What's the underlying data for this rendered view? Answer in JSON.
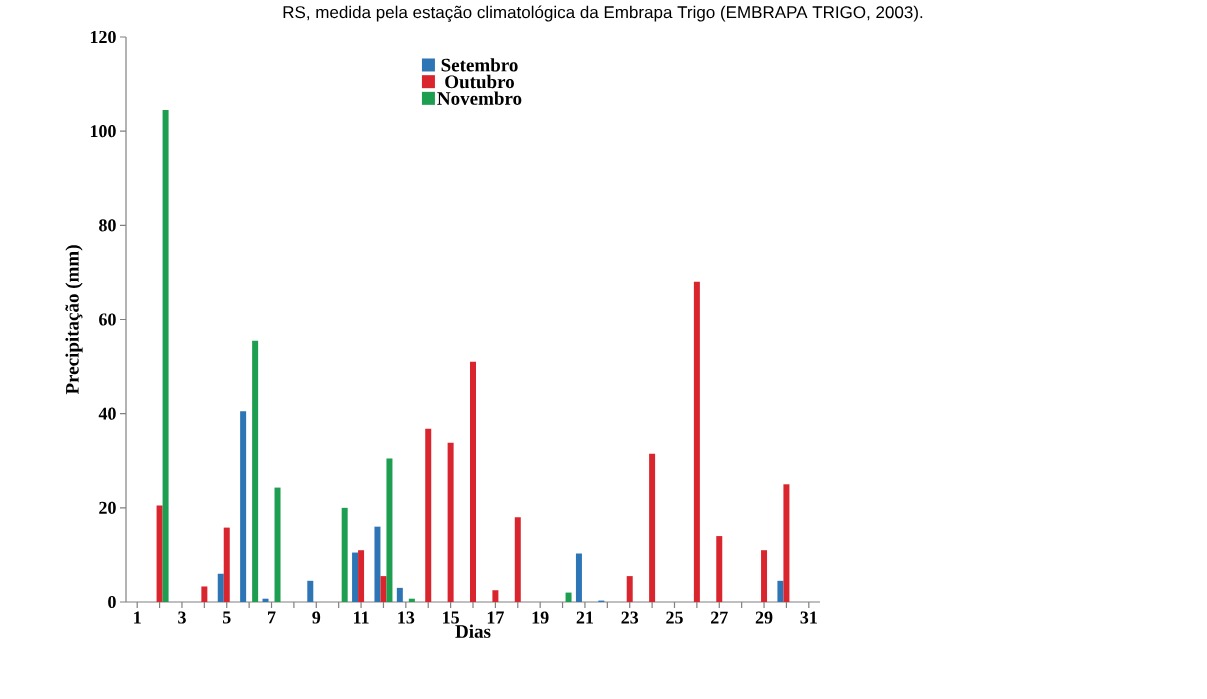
{
  "chart_data": {
    "type": "bar",
    "annotations": [
      "RS, medida pela estação climatológica da Embrapa Trigo (EMBRAPA TRIGO, 2003)."
    ],
    "xlabel": "Dias",
    "ylabel": "Precipitação (mm)",
    "categories": [
      "1",
      null,
      "3",
      null,
      "5",
      null,
      "7",
      null,
      "9",
      null,
      "11",
      null,
      "13",
      null,
      "15",
      null,
      "17",
      null,
      "19",
      null,
      "21",
      null,
      "23",
      null,
      "25",
      null,
      "27",
      null,
      "29",
      null,
      "31"
    ],
    "series": [
      {
        "name": "Setembro",
        "color": "#2e75b6",
        "values": [
          0,
          0,
          0,
          0,
          6,
          40.5,
          0.7,
          0,
          4.5,
          0,
          10.5,
          16,
          3,
          0,
          0,
          0,
          0,
          0,
          0,
          0,
          10.3,
          0.3,
          0,
          0,
          0,
          0,
          0,
          0,
          0,
          4.5,
          0
        ]
      },
      {
        "name": "Outubro",
        "color": "#d9262e",
        "values": [
          0,
          20.5,
          0,
          3.3,
          15.8,
          0,
          0,
          0,
          0,
          0,
          11,
          5.5,
          0,
          36.8,
          33.8,
          51,
          2.5,
          18,
          0,
          0,
          0,
          0,
          5.5,
          31.5,
          0,
          68,
          14,
          0,
          11,
          25,
          0
        ]
      },
      {
        "name": "Novembro",
        "color": "#1e9e50",
        "values": [
          0,
          104.5,
          0,
          0,
          0,
          55.5,
          24.3,
          0,
          0,
          20,
          0,
          30.5,
          0.7,
          0,
          0,
          0,
          0,
          0,
          0,
          2,
          0,
          0,
          0,
          0,
          0,
          0,
          0,
          0,
          0,
          0,
          0
        ]
      }
    ],
    "ylim": [
      0,
      120
    ],
    "yticks": [
      0,
      20,
      40,
      60,
      80,
      100,
      120
    ],
    "legend": "top"
  }
}
